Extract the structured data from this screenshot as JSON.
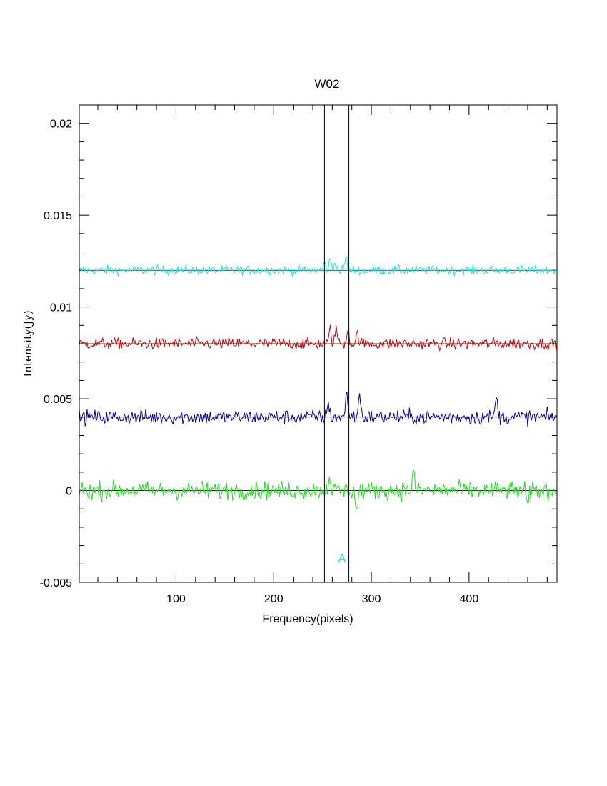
{
  "chart_data": {
    "type": "line",
    "title": "W02",
    "xlabel": "Frequency(pixels)",
    "ylabel": "Intensity(Jy)",
    "xlim": [
      1,
      490
    ],
    "ylim": [
      -0.005,
      0.021
    ],
    "x_ticks": [
      100,
      200,
      300,
      400
    ],
    "x_tick_labels": [
      "100",
      "200",
      "300",
      "400"
    ],
    "y_ticks": [
      -0.005,
      0,
      0.005,
      0.01,
      0.015,
      0.02
    ],
    "y_tick_labels": [
      "-0.005",
      "0",
      "0.005",
      "0.01",
      "0.015",
      "0.02"
    ],
    "grid": false,
    "vertical_markers": [
      252,
      277
    ],
    "region_label": {
      "text": "A",
      "x": 270,
      "y": -0.0037,
      "color": "#33e0e6"
    },
    "series": [
      {
        "offset": 0.012,
        "color": "#22e6e6",
        "noise": 0.00018,
        "n_points": 490,
        "peaks": [
          [
            252,
            0.0004
          ],
          [
            258,
            0.0006
          ],
          [
            263,
            0.0005
          ],
          [
            274,
            0.0008
          ]
        ]
      },
      {
        "offset": 0.008,
        "color": "#cc0000",
        "noise": 0.00022,
        "n_points": 490,
        "peaks": [
          [
            258,
            0.0008
          ],
          [
            264,
            0.0009
          ],
          [
            276,
            0.0009
          ],
          [
            286,
            0.0006
          ]
        ]
      },
      {
        "offset": 0.004,
        "color": "#000099",
        "noise": 0.00028,
        "n_points": 490,
        "peaks": [
          [
            256,
            0.0008
          ],
          [
            275,
            0.0014
          ],
          [
            288,
            0.0013
          ],
          [
            428,
            0.0011
          ]
        ]
      },
      {
        "offset": 0.0,
        "color": "#22dd22",
        "noise": 0.00035,
        "n_points": 490,
        "peaks": [
          [
            257,
            0.0009
          ],
          [
            285,
            -0.0012
          ],
          [
            343,
            0.001
          ],
          [
            460,
            -0.001
          ]
        ]
      }
    ]
  }
}
